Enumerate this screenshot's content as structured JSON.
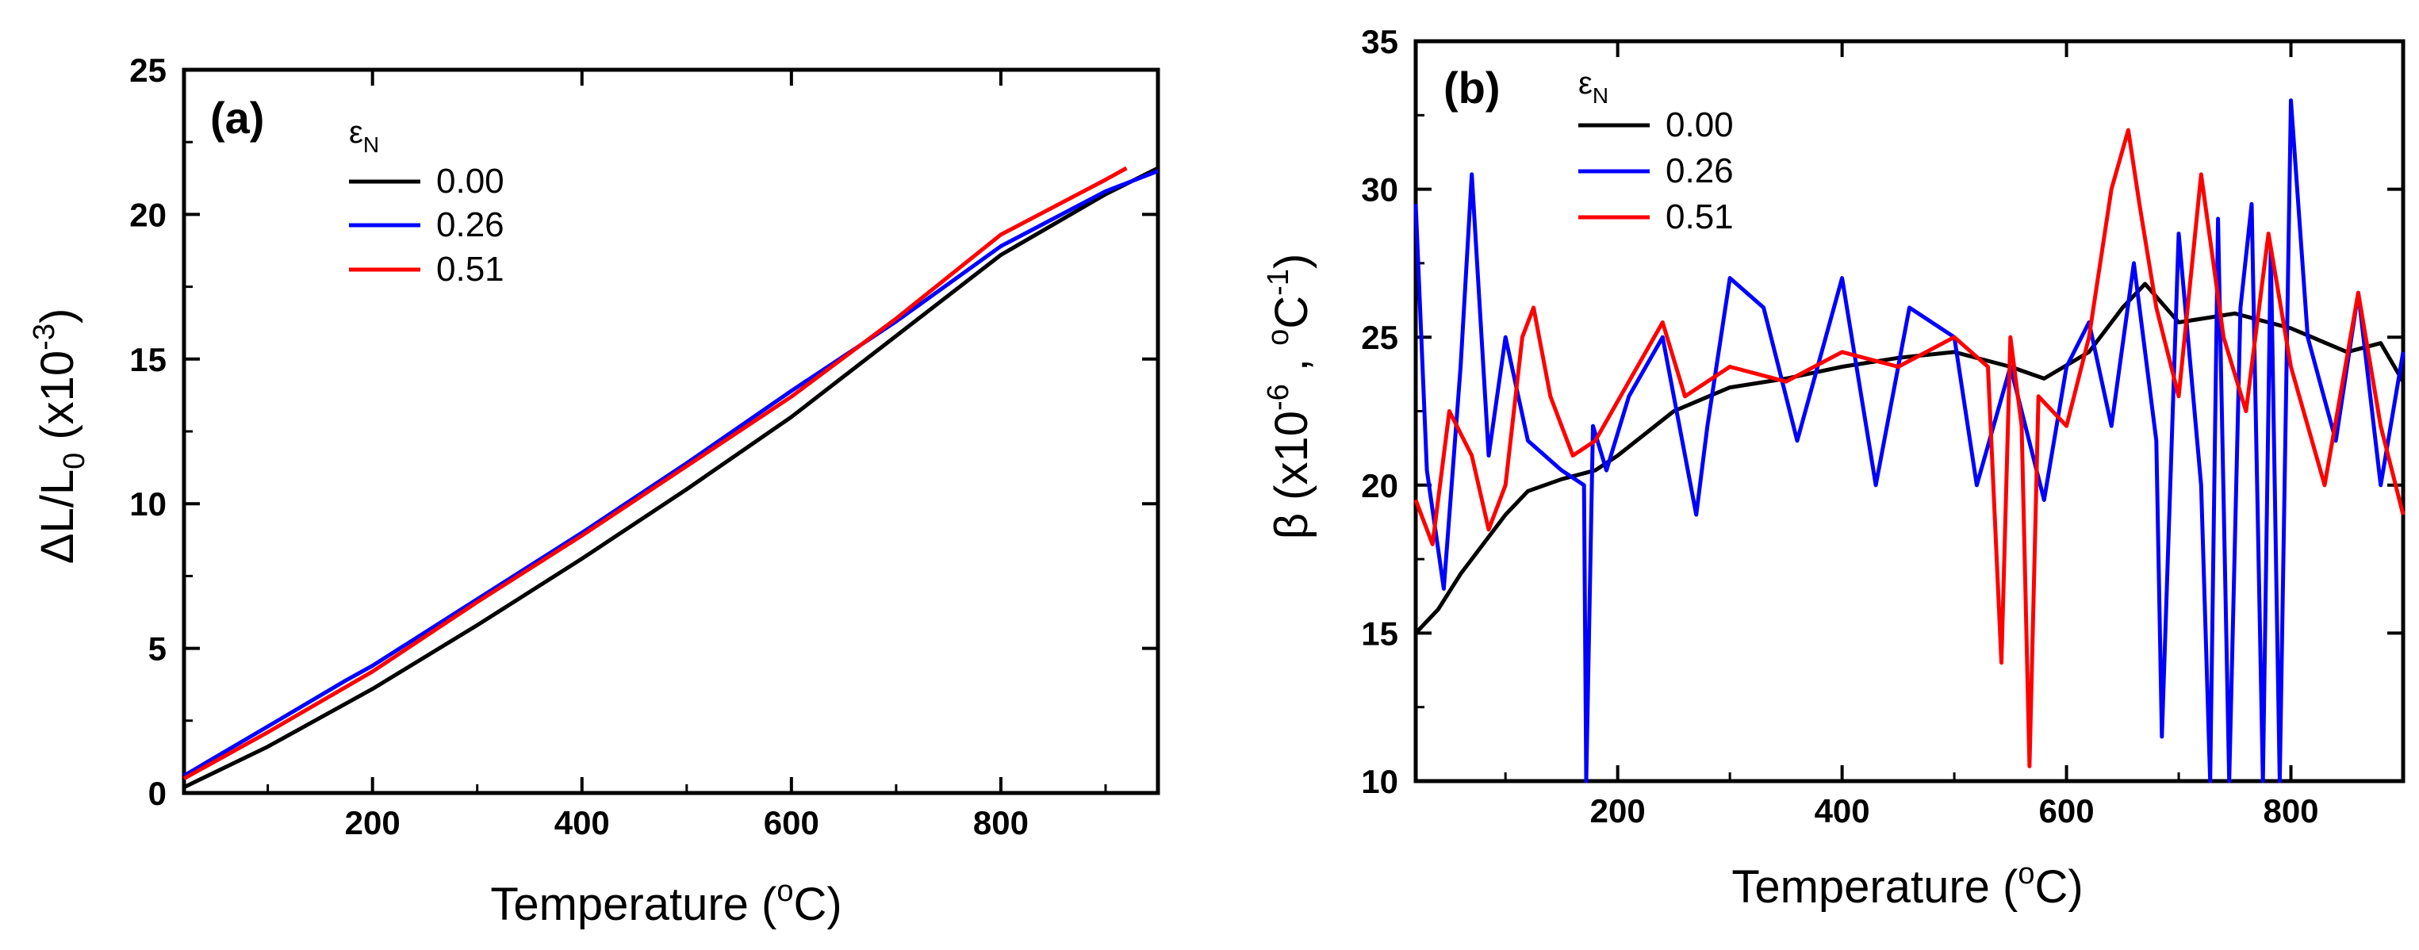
{
  "chart_data": [
    {
      "type": "line",
      "panel_label": "(a)",
      "xlabel": {
        "main": "Temperature (",
        "sup": "o",
        "tail": "C)"
      },
      "ylabel": {
        "p1": "ΔL/L",
        "sub": "0",
        "p2": " (x10",
        "sup": "-3",
        "p3": ")"
      },
      "xlim": [
        20,
        950
      ],
      "ylim": [
        0,
        25
      ],
      "xticks": [
        200,
        400,
        600,
        800
      ],
      "yticks": [
        0,
        5,
        10,
        15,
        20,
        25
      ],
      "legend_title": {
        "main": "ε",
        "sub": "N"
      },
      "series": [
        {
          "name": "0.00",
          "color": "#000000",
          "x": [
            20,
            100,
            200,
            300,
            400,
            500,
            600,
            700,
            800,
            900,
            950
          ],
          "y": [
            0.2,
            1.6,
            3.6,
            5.8,
            8.1,
            10.5,
            13.0,
            15.8,
            18.6,
            20.7,
            21.6
          ]
        },
        {
          "name": "0.26",
          "color": "#0000ff",
          "x": [
            20,
            100,
            175,
            200,
            300,
            400,
            500,
            600,
            700,
            800,
            900,
            950
          ],
          "y": [
            0.6,
            2.3,
            3.9,
            4.4,
            6.7,
            9.0,
            11.4,
            13.9,
            16.3,
            18.9,
            20.8,
            21.5
          ]
        },
        {
          "name": "0.51",
          "color": "#ff0000",
          "x": [
            20,
            100,
            200,
            300,
            400,
            500,
            600,
            700,
            800,
            900,
            920
          ],
          "y": [
            0.5,
            2.1,
            4.2,
            6.6,
            8.9,
            11.3,
            13.7,
            16.4,
            19.3,
            21.2,
            21.6
          ]
        }
      ]
    },
    {
      "type": "line",
      "panel_label": "(b)",
      "xlabel": {
        "main": "Temperature (",
        "sup": "o",
        "tail": "C)"
      },
      "ylabel": {
        "p1": "β (x10",
        "sup1": "-6",
        "p2": " , ",
        "sup2": "o",
        "p3": "C",
        "sup3": "-1",
        "p4": ")"
      },
      "xlim": [
        20,
        900
      ],
      "ylim": [
        10,
        35
      ],
      "xticks": [
        200,
        400,
        600,
        800
      ],
      "yticks": [
        10,
        15,
        20,
        25,
        30,
        35
      ],
      "legend_title": {
        "main": "ε",
        "sub": "N"
      },
      "series": [
        {
          "name": "0.00",
          "color": "#000000",
          "x": [
            20,
            40,
            60,
            80,
            100,
            120,
            150,
            180,
            200,
            250,
            300,
            350,
            400,
            450,
            500,
            550,
            580,
            620,
            650,
            670,
            700,
            750,
            800,
            850,
            880,
            900
          ],
          "y": [
            15.0,
            15.8,
            17.0,
            18.0,
            19.0,
            19.8,
            20.2,
            20.5,
            21.0,
            22.5,
            23.3,
            23.6,
            24.0,
            24.3,
            24.5,
            24.0,
            23.6,
            24.5,
            26.0,
            26.8,
            25.5,
            25.8,
            25.3,
            24.5,
            24.8,
            23.5
          ]
        },
        {
          "name": "0.26",
          "color": "#0000ff",
          "x": [
            20,
            30,
            45,
            60,
            70,
            85,
            100,
            120,
            150,
            170,
            172,
            178,
            190,
            210,
            240,
            270,
            280,
            300,
            330,
            360,
            400,
            430,
            460,
            500,
            520,
            550,
            580,
            600,
            620,
            640,
            660,
            680,
            685,
            700,
            720,
            728,
            735,
            745,
            755,
            765,
            775,
            782,
            790,
            800,
            815,
            840,
            860,
            880,
            900
          ],
          "y": [
            29.5,
            20.5,
            16.5,
            24.0,
            30.5,
            21.0,
            25.0,
            21.5,
            20.5,
            20.0,
            10.0,
            22.0,
            20.5,
            23.0,
            25.0,
            19.0,
            22.0,
            27.0,
            26.0,
            21.5,
            27.0,
            20.0,
            26.0,
            25.0,
            20.0,
            24.0,
            19.5,
            24.0,
            25.5,
            22.0,
            27.5,
            21.5,
            11.5,
            28.5,
            20.0,
            10.0,
            29.0,
            10.0,
            26.0,
            29.5,
            10.0,
            28.0,
            10.0,
            33.0,
            25.0,
            21.5,
            26.5,
            20.0,
            24.5
          ]
        },
        {
          "name": "0.51",
          "color": "#ff0000",
          "x": [
            20,
            35,
            50,
            70,
            85,
            100,
            115,
            125,
            140,
            160,
            180,
            210,
            240,
            260,
            300,
            350,
            400,
            450,
            500,
            530,
            542,
            550,
            560,
            567,
            575,
            600,
            620,
            640,
            655,
            665,
            680,
            700,
            720,
            740,
            760,
            780,
            800,
            830,
            860,
            880,
            900
          ],
          "y": [
            19.5,
            18.0,
            22.5,
            21.0,
            18.5,
            20.0,
            25.0,
            26.0,
            23.0,
            21.0,
            21.5,
            23.5,
            25.5,
            23.0,
            24.0,
            23.5,
            24.5,
            24.0,
            25.0,
            24.0,
            14.0,
            25.0,
            22.0,
            10.5,
            23.0,
            22.0,
            25.0,
            30.0,
            32.0,
            29.5,
            26.0,
            23.0,
            30.5,
            25.0,
            22.5,
            28.5,
            24.0,
            20.0,
            26.5,
            22.0,
            19.0
          ]
        }
      ]
    }
  ]
}
